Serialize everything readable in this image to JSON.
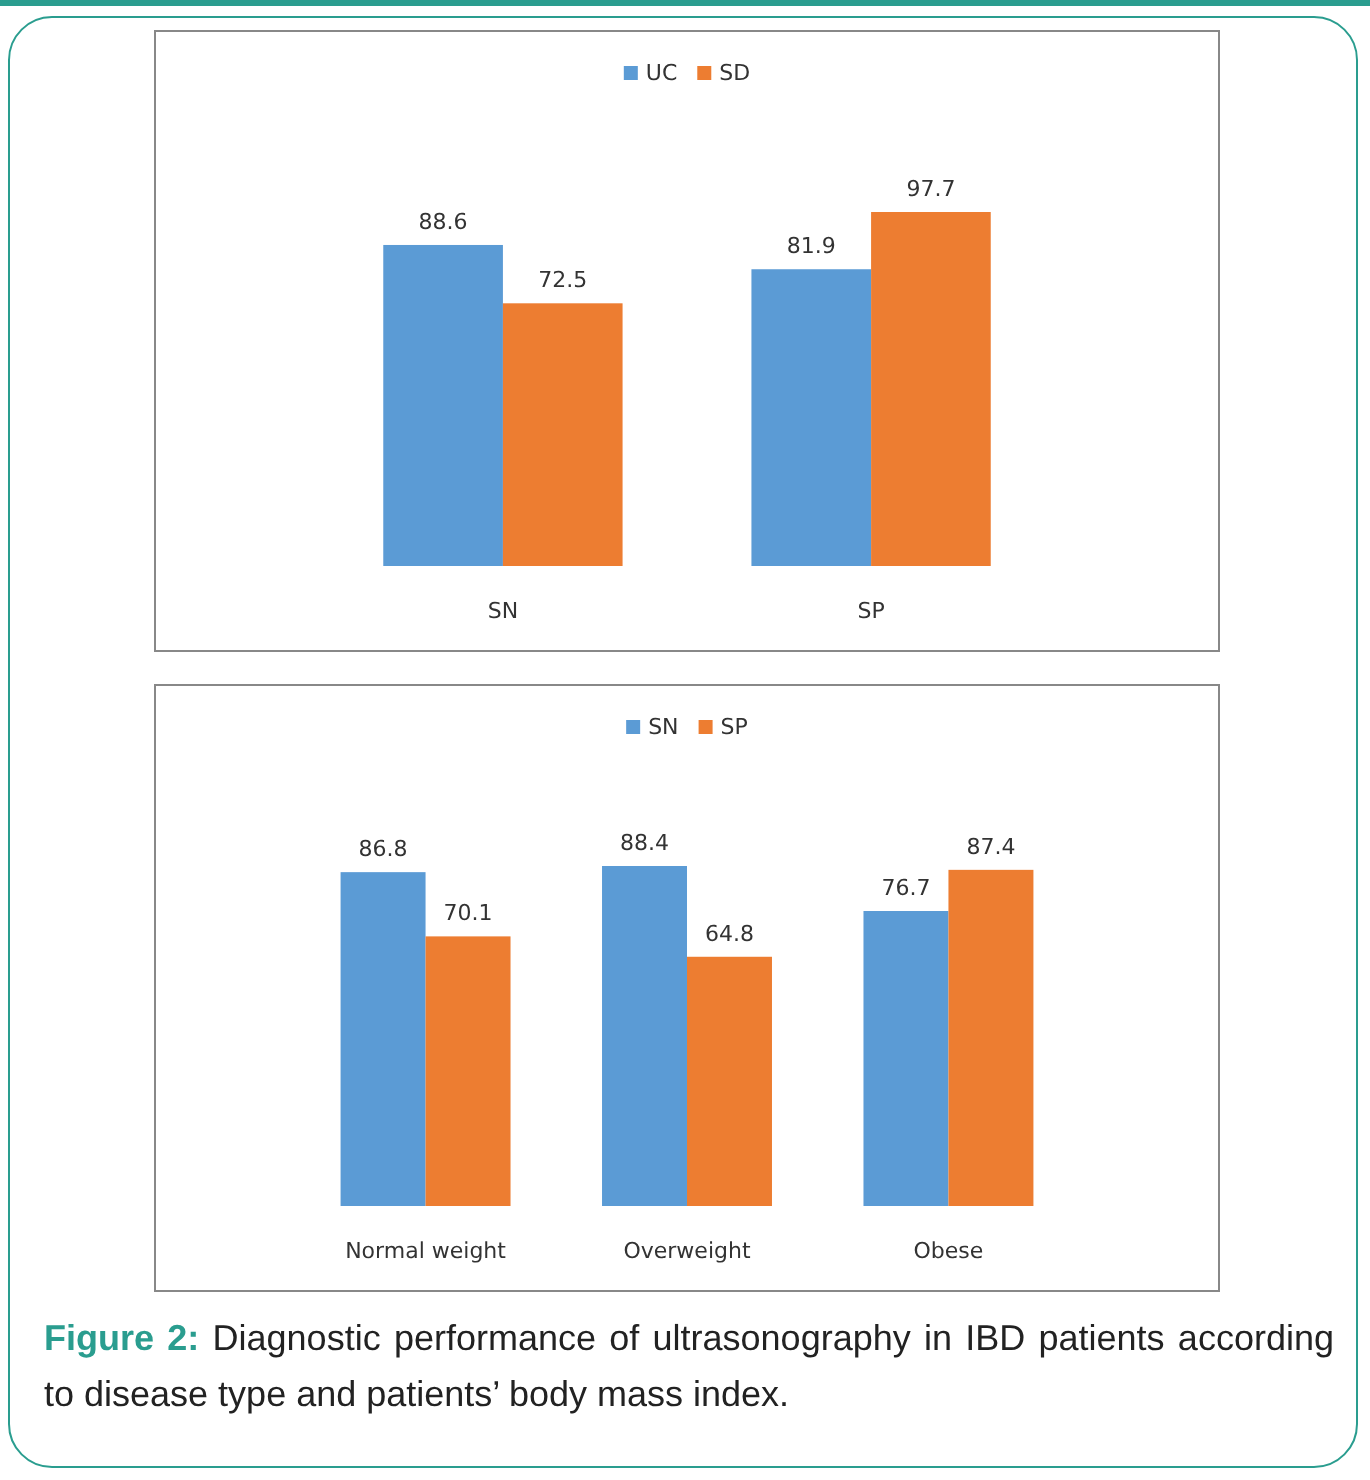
{
  "chart_data": [
    {
      "type": "bar",
      "categories": [
        "SN",
        "SP"
      ],
      "series": [
        {
          "name": "UC",
          "color": "#5b9bd5",
          "values": [
            88.6,
            81.9
          ]
        },
        {
          "name": "SD",
          "color": "#ed7d31",
          "values": [
            72.5,
            97.7
          ]
        }
      ],
      "data_labels": true,
      "legend": "top",
      "grid": false
    },
    {
      "type": "bar",
      "categories": [
        "Normal weight",
        "Overweight",
        "Obese"
      ],
      "series": [
        {
          "name": "SN",
          "color": "#5b9bd5",
          "values": [
            86.8,
            88.4,
            76.7
          ]
        },
        {
          "name": "SP",
          "color": "#ed7d31",
          "values": [
            70.1,
            64.8,
            87.4
          ]
        }
      ],
      "data_labels": true,
      "legend": "top",
      "grid": false,
      "annotations": [
        "Figure 2:",
        "Diagnostic performance of ultrasonography in IBD patients according to disease type and patients’ body mass index."
      ]
    }
  ]
}
